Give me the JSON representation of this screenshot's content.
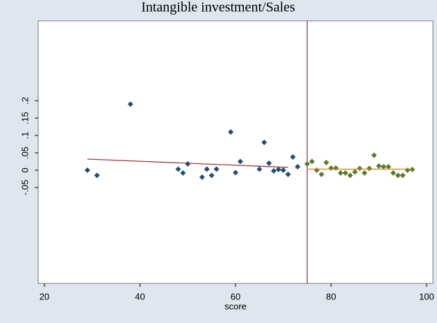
{
  "chart_data": {
    "type": "scatter",
    "title": "Intangible investment/Sales",
    "x_label": "score",
    "xlim": [
      18.7,
      101.3
    ],
    "xticks": [
      20,
      40,
      60,
      80,
      100
    ],
    "ylim": [
      -0.326,
      0.43
    ],
    "yticks": [
      {
        "value": -0.05,
        "label": "-.05"
      },
      0,
      {
        "value": 0.05,
        "label": ".05"
      },
      {
        "value": 0.1,
        "label": ".1"
      },
      {
        "value": 0.15,
        "label": ".15"
      },
      {
        "value": 0.2,
        "label": ".2"
      }
    ],
    "xline": {
      "value": 75,
      "color": "#a0203c"
    },
    "series": [
      {
        "kind": "scatter",
        "marker": "diamond",
        "color": "#1f4e79",
        "x": [
          29,
          31,
          38,
          48,
          49,
          50,
          53,
          54,
          55,
          56,
          59,
          60,
          61,
          65,
          66,
          67,
          68,
          69,
          70,
          71,
          72,
          73
        ],
        "values": [
          0,
          -0.015,
          0.19,
          0.003,
          -0.008,
          0.018,
          -0.02,
          0.003,
          -0.015,
          0.003,
          0.11,
          -0.007,
          0.025,
          0.003,
          0.08,
          0.02,
          -0.002,
          0.002,
          0,
          -0.012,
          0.038,
          0.01
        ]
      },
      {
        "kind": "scatter",
        "marker": "diamond",
        "color": "#5a7a2a",
        "x": [
          75,
          76,
          77,
          78,
          79,
          80,
          81,
          82,
          83,
          84,
          85,
          86,
          87,
          88,
          89,
          90,
          91,
          92,
          93,
          94,
          95,
          96,
          97
        ],
        "values": [
          0.018,
          0.025,
          0,
          -0.012,
          0.022,
          0.006,
          0.006,
          -0.008,
          -0.008,
          -0.015,
          -0.005,
          0.005,
          -0.008,
          0.005,
          0.043,
          0.012,
          0.01,
          0.01,
          -0.008,
          -0.015,
          -0.015,
          0,
          0.002
        ]
      },
      {
        "kind": "line",
        "color": "#9b2a2a",
        "x": [
          29,
          71
        ],
        "values": [
          0.032,
          0.008
        ]
      },
      {
        "kind": "line",
        "color": "#d0802a",
        "x": [
          75,
          97
        ],
        "values": [
          0.003,
          0.003
        ]
      }
    ]
  }
}
